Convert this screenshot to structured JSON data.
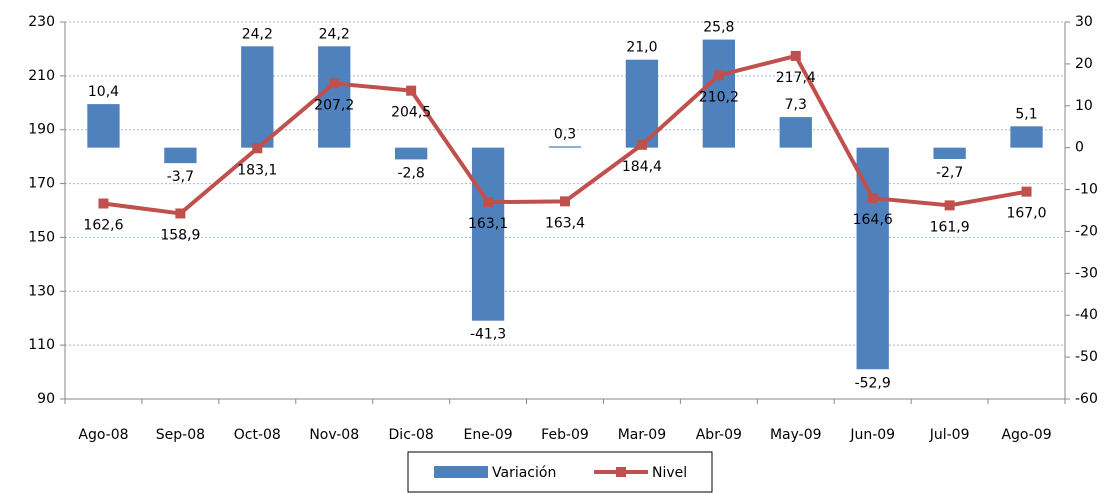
{
  "chart_data": {
    "type": "combo",
    "categories": [
      "Ago-08",
      "Sep-08",
      "Oct-08",
      "Nov-08",
      "Dic-08",
      "Ene-09",
      "Feb-09",
      "Mar-09",
      "Abr-09",
      "May-09",
      "Jun-09",
      "Jul-09",
      "Ago-09"
    ],
    "series": [
      {
        "name": "Variación",
        "type": "bar",
        "axis": "y2",
        "color": "#4f81bd",
        "values": [
          10.4,
          -3.7,
          24.2,
          24.2,
          -2.8,
          -41.3,
          0.3,
          21.0,
          25.8,
          7.3,
          -52.9,
          -2.7,
          5.1
        ],
        "value_labels": [
          "10,4",
          "-3,7",
          "24,2",
          "24,2",
          "-2,8",
          "-41,3",
          "0,3",
          "21,0",
          "25,8",
          "7,3",
          "-52,9",
          "-2,7",
          "5,1"
        ]
      },
      {
        "name": "Nivel",
        "type": "line",
        "color": "#c0504d",
        "values": [
          162.6,
          158.9,
          183.1,
          207.2,
          204.5,
          163.1,
          163.4,
          184.4,
          210.2,
          217.4,
          164.6,
          161.9,
          167.0
        ],
        "value_labels": [
          "162,6",
          "158,9",
          "183,1",
          "207,2",
          "204,5",
          "163,1",
          "163,4",
          "184,4",
          "210,2",
          "217,4",
          "164,6",
          "161,9",
          "167,0"
        ]
      }
    ],
    "ylim": [
      90,
      230
    ],
    "yticks": [
      90,
      110,
      130,
      150,
      170,
      190,
      210,
      230
    ],
    "y2lim": [
      -60,
      30
    ],
    "y2ticks": [
      -60,
      -50,
      -40,
      -30,
      -20,
      -10,
      0,
      10,
      20,
      30
    ],
    "grid": true,
    "legend": "bottom"
  }
}
